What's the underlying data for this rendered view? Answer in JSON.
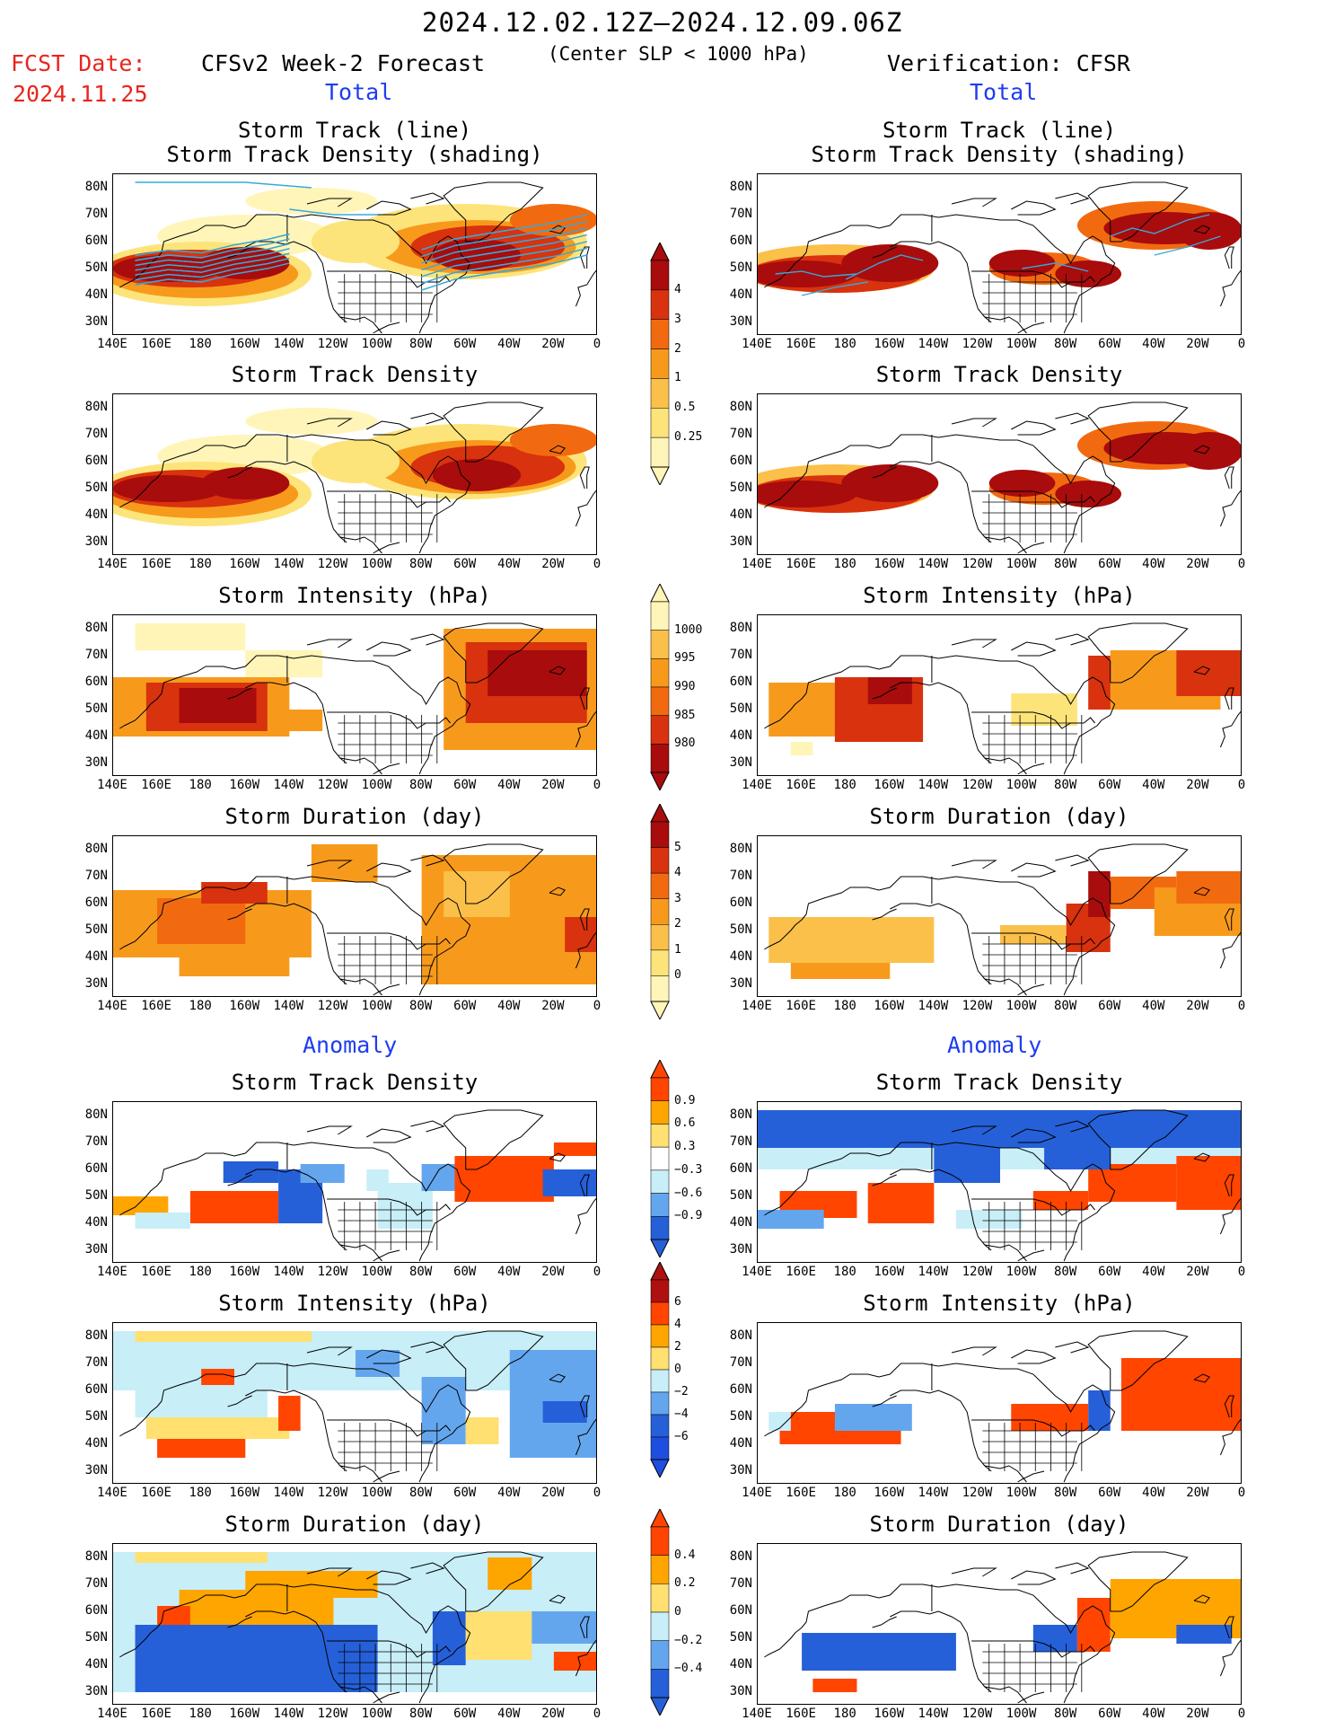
{
  "header": {
    "period": "2024.12.02.12Z–2024.12.09.06Z",
    "fcst_label": "FCST Date:",
    "fcst_date": "2024.11.25",
    "model": "CFSv2 Week-2 Forecast",
    "criterion": "(Center SLP < 1000 hPa)",
    "verification": "Verification: CFSR",
    "total_left": "Total",
    "total_right": "Total",
    "anomaly_left": "Anomaly",
    "anomaly_right": "Anomaly"
  },
  "panels": {
    "p1_title_a": "Storm Track (line)",
    "p1_title_b": "Storm Track Density (shading)",
    "p2_title": "Storm Track Density",
    "p3_title": "Storm Intensity (hPa)",
    "p4_title": "Storm Duration (day)",
    "p5_title": "Storm Track Density",
    "p6_title": "Storm Intensity (hPa)",
    "p7_title": "Storm Duration (day)"
  },
  "axes": {
    "lat_labels": [
      "80N",
      "70N",
      "60N",
      "50N",
      "40N",
      "30N"
    ],
    "lon_labels": [
      "140E",
      "160E",
      "180",
      "160W",
      "140W",
      "120W",
      "100W",
      "80W",
      "60W",
      "40W",
      "20W",
      "0"
    ]
  },
  "colorbars": {
    "density_total": [
      "4",
      "3",
      "2",
      "1",
      "0.5",
      "0.25"
    ],
    "intensity_total": [
      "1000",
      "995",
      "990",
      "985",
      "980"
    ],
    "duration_total": [
      "5",
      "4",
      "3",
      "2",
      "1",
      "0"
    ],
    "density_anom": [
      "0.9",
      "0.6",
      "0.3",
      "−0.3",
      "−0.6",
      "−0.9"
    ],
    "intensity_anom": [
      "6",
      "4",
      "2",
      "0",
      "−2",
      "−4",
      "−6"
    ],
    "duration_anom": [
      "0.4",
      "0.2",
      "0",
      "−0.2",
      "−0.4"
    ]
  },
  "colors": {
    "total_scale": [
      "#fff5b8",
      "#fde47a",
      "#fbc04a",
      "#f79a1c",
      "#f26a10",
      "#d8320e",
      "#a80c0c"
    ],
    "anom_pos": [
      "#ffe070",
      "#ffa500",
      "#ff4500"
    ],
    "anom_neg": [
      "#c8eef8",
      "#64a6ee",
      "#2660d8"
    ],
    "track_line": "#38a8d8",
    "title_red": "#e8251e",
    "title_blue": "#1f3cf0"
  }
}
